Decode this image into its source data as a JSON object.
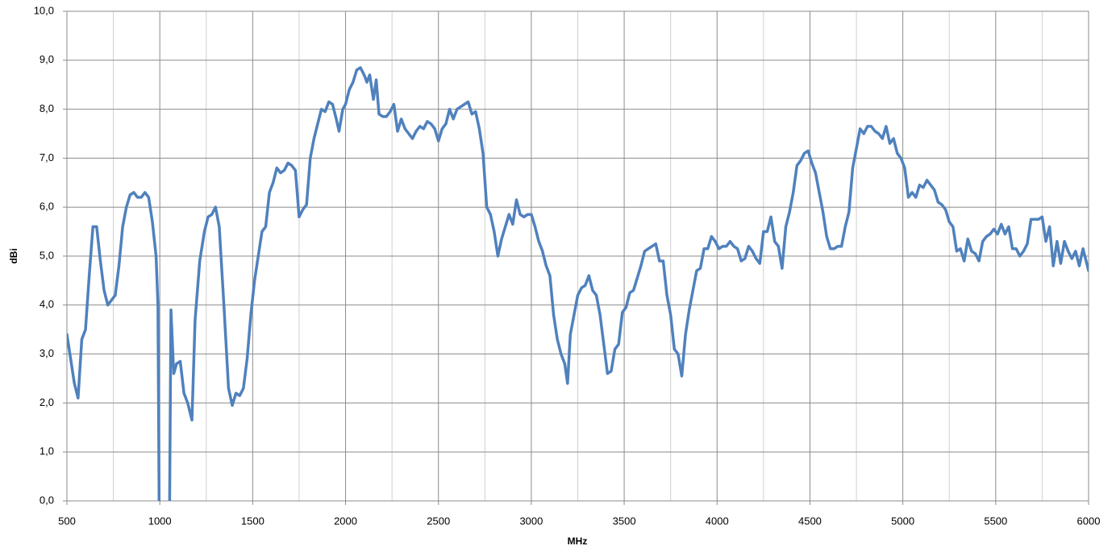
{
  "chart_data": {
    "type": "line",
    "xlabel": "MHz",
    "ylabel": "dBi",
    "xlim": [
      500,
      6000
    ],
    "ylim": [
      0,
      10
    ],
    "xticks": [
      500,
      1000,
      1500,
      2000,
      2500,
      3000,
      3500,
      4000,
      4500,
      5000,
      5500,
      6000
    ],
    "xminorticks": [
      750,
      1250,
      1750,
      2250,
      2750,
      3250,
      3750,
      4250,
      4750,
      5250,
      5750
    ],
    "yticks": [
      {
        "value": 0,
        "label": "0,0"
      },
      {
        "value": 1,
        "label": "1,0"
      },
      {
        "value": 2,
        "label": "2,0"
      },
      {
        "value": 3,
        "label": "3,0"
      },
      {
        "value": 4,
        "label": "4,0"
      },
      {
        "value": 5,
        "label": "5,0"
      },
      {
        "value": 6,
        "label": "6,0"
      },
      {
        "value": 7,
        "label": "7,0"
      },
      {
        "value": 8,
        "label": "8,0"
      },
      {
        "value": 9,
        "label": "9,0"
      },
      {
        "value": 10,
        "label": "10,0"
      }
    ],
    "grid": true,
    "color": "#4f81bd",
    "x": [
      500,
      520,
      540,
      560,
      580,
      600,
      620,
      640,
      660,
      680,
      700,
      720,
      740,
      760,
      780,
      800,
      820,
      840,
      860,
      880,
      900,
      920,
      940,
      960,
      980,
      990,
      997,
      1052,
      1060,
      1075,
      1090,
      1110,
      1130,
      1150,
      1173,
      1190,
      1215,
      1240,
      1260,
      1280,
      1300,
      1320,
      1345,
      1370,
      1390,
      1410,
      1430,
      1450,
      1470,
      1490,
      1510,
      1530,
      1550,
      1570,
      1590,
      1610,
      1630,
      1650,
      1670,
      1690,
      1710,
      1730,
      1750,
      1770,
      1790,
      1810,
      1830,
      1850,
      1870,
      1890,
      1910,
      1930,
      1950,
      1965,
      1985,
      2000,
      2020,
      2040,
      2060,
      2080,
      2100,
      2115,
      2130,
      2150,
      2165,
      2180,
      2200,
      2220,
      2240,
      2260,
      2280,
      2300,
      2320,
      2340,
      2360,
      2380,
      2400,
      2420,
      2440,
      2460,
      2480,
      2500,
      2520,
      2540,
      2560,
      2580,
      2600,
      2620,
      2640,
      2660,
      2680,
      2700,
      2720,
      2740,
      2760,
      2780,
      2800,
      2820,
      2840,
      2860,
      2880,
      2900,
      2920,
      2940,
      2960,
      2980,
      3000,
      3020,
      3040,
      3060,
      3080,
      3100,
      3120,
      3140,
      3160,
      3180,
      3195,
      3210,
      3230,
      3250,
      3270,
      3290,
      3310,
      3330,
      3350,
      3370,
      3390,
      3410,
      3430,
      3450,
      3470,
      3490,
      3510,
      3530,
      3550,
      3570,
      3590,
      3610,
      3630,
      3650,
      3670,
      3690,
      3710,
      3730,
      3750,
      3770,
      3790,
      3810,
      3830,
      3850,
      3870,
      3890,
      3910,
      3930,
      3950,
      3970,
      3990,
      4010,
      4030,
      4050,
      4070,
      4090,
      4110,
      4130,
      4150,
      4170,
      4190,
      4210,
      4230,
      4250,
      4270,
      4290,
      4310,
      4330,
      4350,
      4370,
      4390,
      4410,
      4430,
      4450,
      4470,
      4490,
      4510,
      4530,
      4550,
      4570,
      4590,
      4610,
      4630,
      4650,
      4670,
      4690,
      4710,
      4730,
      4750,
      4770,
      4790,
      4810,
      4830,
      4850,
      4870,
      4890,
      4910,
      4930,
      4950,
      4970,
      4990,
      5010,
      5030,
      5050,
      5070,
      5090,
      5110,
      5130,
      5150,
      5170,
      5190,
      5210,
      5230,
      5250,
      5270,
      5290,
      5310,
      5330,
      5350,
      5370,
      5390,
      5410,
      5430,
      5450,
      5470,
      5490,
      5510,
      5530,
      5550,
      5570,
      5590,
      5610,
      5630,
      5650,
      5670,
      5690,
      5710,
      5730,
      5750,
      5770,
      5790,
      5810,
      5830,
      5850,
      5870,
      5890,
      5910,
      5930,
      5950,
      5970,
      6000
    ],
    "values": [
      3.4,
      2.9,
      2.4,
      2.1,
      3.3,
      3.5,
      4.6,
      5.6,
      5.6,
      4.9,
      4.3,
      4.0,
      4.1,
      4.2,
      4.8,
      5.6,
      6.0,
      6.25,
      6.3,
      6.2,
      6.2,
      6.3,
      6.2,
      5.7,
      5.0,
      4.0,
      -0.5,
      -0.5,
      3.9,
      2.6,
      2.8,
      2.85,
      2.2,
      2.0,
      1.65,
      3.7,
      4.9,
      5.5,
      5.8,
      5.85,
      6.0,
      5.6,
      4.0,
      2.3,
      1.95,
      2.2,
      2.15,
      2.3,
      2.9,
      3.8,
      4.5,
      5.0,
      5.5,
      5.6,
      6.3,
      6.5,
      6.8,
      6.7,
      6.75,
      6.9,
      6.85,
      6.75,
      5.8,
      5.95,
      6.05,
      7.0,
      7.4,
      7.7,
      8.0,
      7.95,
      8.15,
      8.1,
      7.8,
      7.55,
      8.0,
      8.1,
      8.4,
      8.55,
      8.8,
      8.85,
      8.7,
      8.55,
      8.7,
      8.2,
      8.6,
      7.9,
      7.85,
      7.85,
      7.95,
      8.1,
      7.55,
      7.8,
      7.6,
      7.5,
      7.4,
      7.55,
      7.65,
      7.6,
      7.75,
      7.7,
      7.6,
      7.35,
      7.6,
      7.7,
      8.0,
      7.8,
      8.0,
      8.05,
      8.1,
      8.15,
      7.9,
      7.95,
      7.6,
      7.1,
      6.0,
      5.85,
      5.5,
      5.0,
      5.35,
      5.6,
      5.85,
      5.65,
      6.15,
      5.85,
      5.8,
      5.85,
      5.85,
      5.6,
      5.3,
      5.1,
      4.8,
      4.6,
      3.8,
      3.3,
      3.0,
      2.8,
      2.4,
      3.4,
      3.8,
      4.2,
      4.35,
      4.4,
      4.6,
      4.3,
      4.2,
      3.8,
      3.2,
      2.6,
      2.65,
      3.1,
      3.2,
      3.85,
      3.95,
      4.25,
      4.3,
      4.55,
      4.8,
      5.1,
      5.15,
      5.2,
      5.25,
      4.9,
      4.9,
      4.2,
      3.8,
      3.1,
      3.0,
      2.55,
      3.4,
      3.9,
      4.3,
      4.7,
      4.75,
      5.15,
      5.15,
      5.4,
      5.3,
      5.15,
      5.2,
      5.2,
      5.3,
      5.2,
      5.15,
      4.9,
      4.95,
      5.2,
      5.1,
      4.95,
      4.85,
      5.5,
      5.5,
      5.8,
      5.3,
      5.2,
      4.75,
      5.6,
      5.9,
      6.3,
      6.85,
      6.95,
      7.1,
      7.15,
      6.9,
      6.7,
      6.3,
      5.9,
      5.4,
      5.15,
      5.15,
      5.2,
      5.2,
      5.6,
      5.9,
      6.8,
      7.2,
      7.6,
      7.5,
      7.65,
      7.65,
      7.55,
      7.5,
      7.4,
      7.65,
      7.3,
      7.4,
      7.1,
      7.0,
      6.8,
      6.2,
      6.3,
      6.2,
      6.45,
      6.4,
      6.55,
      6.45,
      6.35,
      6.1,
      6.05,
      5.95,
      5.7,
      5.6,
      5.1,
      5.15,
      4.9,
      5.35,
      5.1,
      5.05,
      4.9,
      5.3,
      5.4,
      5.45,
      5.55,
      5.45,
      5.65,
      5.45,
      5.6,
      5.15,
      5.15,
      5.0,
      5.1,
      5.25,
      5.75,
      5.75,
      5.75,
      5.8,
      5.3,
      5.6,
      4.8,
      5.3,
      4.85,
      5.3,
      5.1,
      4.95,
      5.1,
      4.8,
      5.15,
      4.7
    ]
  }
}
